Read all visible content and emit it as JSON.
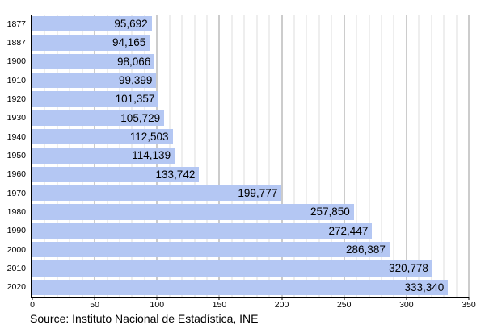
{
  "chart_data": {
    "type": "bar",
    "orientation": "horizontal",
    "title": "",
    "categories": [
      "1877",
      "1887",
      "1900",
      "1910",
      "1920",
      "1930",
      "1940",
      "1950",
      "1960",
      "1970",
      "1980",
      "1990",
      "2000",
      "2010",
      "2020"
    ],
    "values": [
      95692,
      94165,
      98066,
      99399,
      101357,
      105729,
      112503,
      114139,
      133742,
      199777,
      257850,
      272447,
      286387,
      320778,
      333340
    ],
    "bar_labels": [
      "95,692",
      "94,165",
      "98,066",
      "99,399",
      "101,357",
      "105,729",
      "112,503",
      "114,139",
      "133,742",
      "199,777",
      "257,850",
      "272,447",
      "286,387",
      "320,778",
      "333,340"
    ],
    "xlim": [
      0,
      350000
    ],
    "x_tick_labels": [
      "0",
      "50",
      "100",
      "150",
      "200",
      "250",
      "300",
      "350"
    ],
    "x_major_step": 50000,
    "x_minor_step": 10000,
    "grid": true,
    "legend_position": "none"
  },
  "footer": {
    "source_text": "Source: Instituto Nacional de Estadística, INE"
  },
  "colors": {
    "background": "#ffffff",
    "bar_fill": "#b4c7f3",
    "grid_minor": "#dedede",
    "grid_major": "#9a9a9a",
    "axis": "#000000",
    "text": "#000000"
  }
}
